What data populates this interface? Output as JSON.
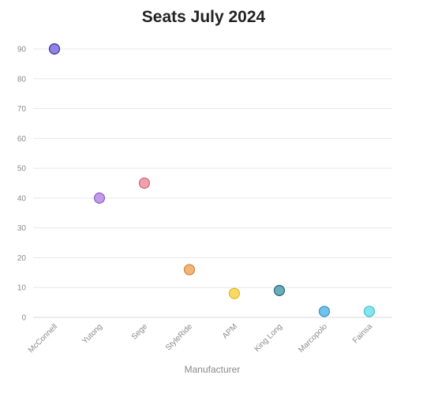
{
  "chart_data": {
    "type": "scatter",
    "title": "Seats July 2024",
    "xlabel": "Manufacturer",
    "ylabel": "",
    "ylim": [
      0,
      95
    ],
    "yticks": [
      0,
      10,
      20,
      30,
      40,
      50,
      60,
      70,
      80,
      90
    ],
    "grid": true,
    "categories": [
      "McConnell",
      "Yutong",
      "Sege",
      "StyleRide",
      "APM",
      "King Long",
      "Marcopolo",
      "Fainsa"
    ],
    "values": [
      90,
      40,
      45,
      16,
      8,
      9,
      2,
      2
    ],
    "colors": [
      "#7b6fe0",
      "#b98ae6",
      "#ef8fa0",
      "#f0a860",
      "#f7d44e",
      "#4f9fad",
      "#57b8ea",
      "#6fe3ea"
    ],
    "strokes": [
      "#3c3390",
      "#8a5fc0",
      "#d0687a",
      "#d08438",
      "#e0b820",
      "#226878",
      "#3a90c0",
      "#40c0c8"
    ]
  }
}
